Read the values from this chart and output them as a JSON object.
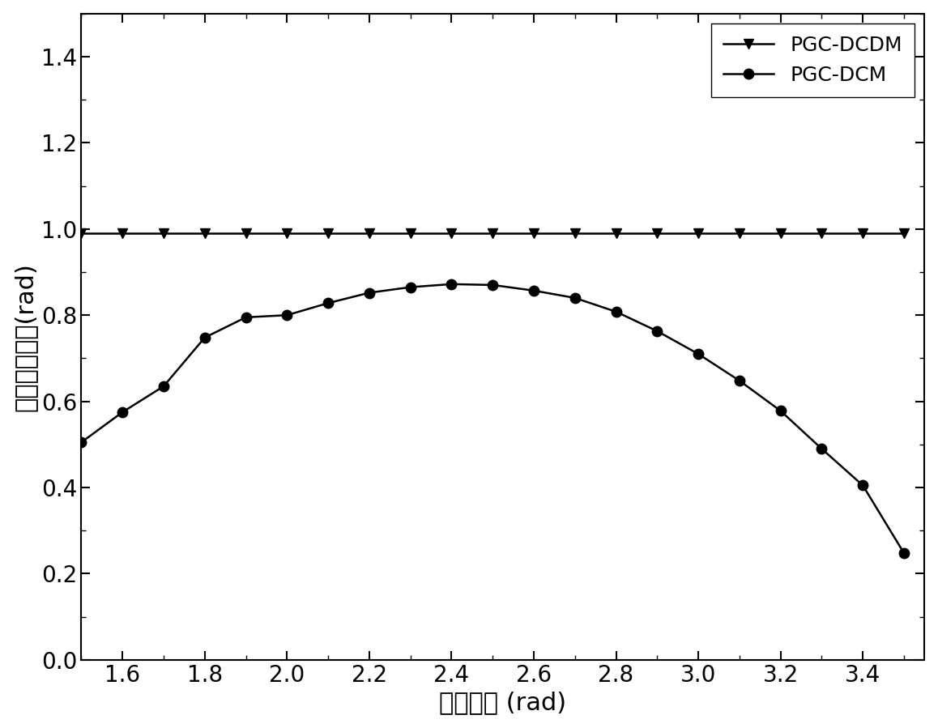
{
  "pgc_dcdm_x": [
    1.5,
    1.6,
    1.7,
    1.8,
    1.9,
    2.0,
    2.1,
    2.2,
    2.3,
    2.4,
    2.5,
    2.6,
    2.7,
    2.8,
    2.9,
    3.0,
    3.1,
    3.2,
    3.3,
    3.4,
    3.5
  ],
  "pgc_dcdm_y": [
    0.99,
    0.99,
    0.99,
    0.99,
    0.99,
    0.99,
    0.99,
    0.99,
    0.99,
    0.99,
    0.99,
    0.99,
    0.99,
    0.99,
    0.99,
    0.99,
    0.99,
    0.99,
    0.99,
    0.99,
    0.99
  ],
  "pgc_dcm_x": [
    1.5,
    1.6,
    1.7,
    1.8,
    1.9,
    2.0,
    2.1,
    2.2,
    2.3,
    2.4,
    2.5,
    2.6,
    2.7,
    2.8,
    2.9,
    3.0,
    3.1,
    3.2,
    3.3,
    3.4,
    3.5
  ],
  "pgc_dcm_y": [
    0.505,
    0.575,
    0.635,
    0.748,
    0.795,
    0.8,
    0.828,
    0.852,
    0.865,
    0.872,
    0.87,
    0.857,
    0.84,
    0.808,
    0.763,
    0.71,
    0.648,
    0.578,
    0.49,
    0.405,
    0.248
  ],
  "xlabel": "调制深度 (rad)",
  "ylabel": "解调相位幅値(rad)",
  "xlim": [
    1.5,
    3.55
  ],
  "ylim": [
    0.0,
    1.5
  ],
  "xticks": [
    1.6,
    1.8,
    2.0,
    2.2,
    2.4,
    2.6,
    2.8,
    3.0,
    3.2,
    3.4
  ],
  "yticks": [
    0.0,
    0.2,
    0.4,
    0.6,
    0.8,
    1.0,
    1.2,
    1.4
  ],
  "legend_labels": [
    "PGC-DCDM",
    "PGC-DCM"
  ],
  "line_color": "#000000",
  "background_color": "#ffffff",
  "marker_dcdm": "v",
  "marker_dcm": "o",
  "markersize": 9,
  "linewidth": 1.8,
  "label_fontsize": 22,
  "tick_fontsize": 20,
  "legend_fontsize": 18
}
